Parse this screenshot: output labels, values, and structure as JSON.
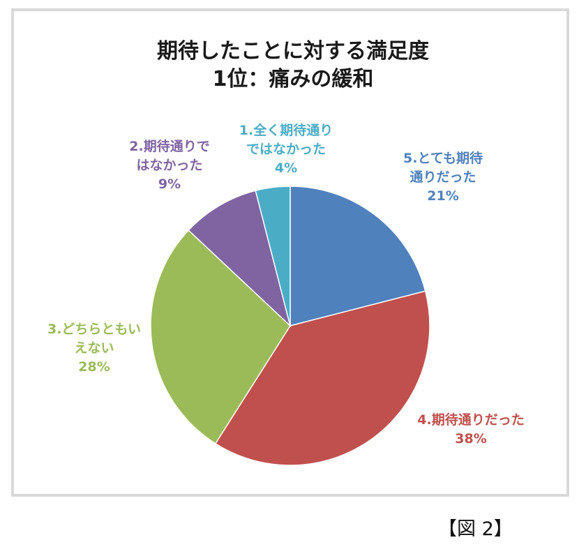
{
  "chart_data": {
    "type": "pie",
    "title_line1": "期待したことに対する満足度",
    "title_line2": "1位：痛みの緩和",
    "slices": [
      {
        "label_line1": "5.とても期待",
        "label_line2": "通りだった",
        "pct_label": "21%",
        "value": 21,
        "color": "#4f81bd",
        "label_color": "#4f81bd"
      },
      {
        "label_line1": "4.期待通りだった",
        "label_line2": "",
        "pct_label": "38%",
        "value": 38,
        "color": "#c0504d",
        "label_color": "#c0504d"
      },
      {
        "label_line1": "3.どちらともい",
        "label_line2": "えない",
        "pct_label": "28%",
        "value": 28,
        "color": "#9bbb59",
        "label_color": "#9bbb59"
      },
      {
        "label_line1": "2.期待通りで",
        "label_line2": "はなかった",
        "pct_label": "9%",
        "value": 9,
        "color": "#8064a2",
        "label_color": "#8064a2"
      },
      {
        "label_line1": "1.全く期待通り",
        "label_line2": "ではなかった",
        "pct_label": "4%",
        "value": 4,
        "color": "#4bacc6",
        "label_color": "#4bacc6"
      }
    ]
  },
  "figure_caption": "【図 2】"
}
